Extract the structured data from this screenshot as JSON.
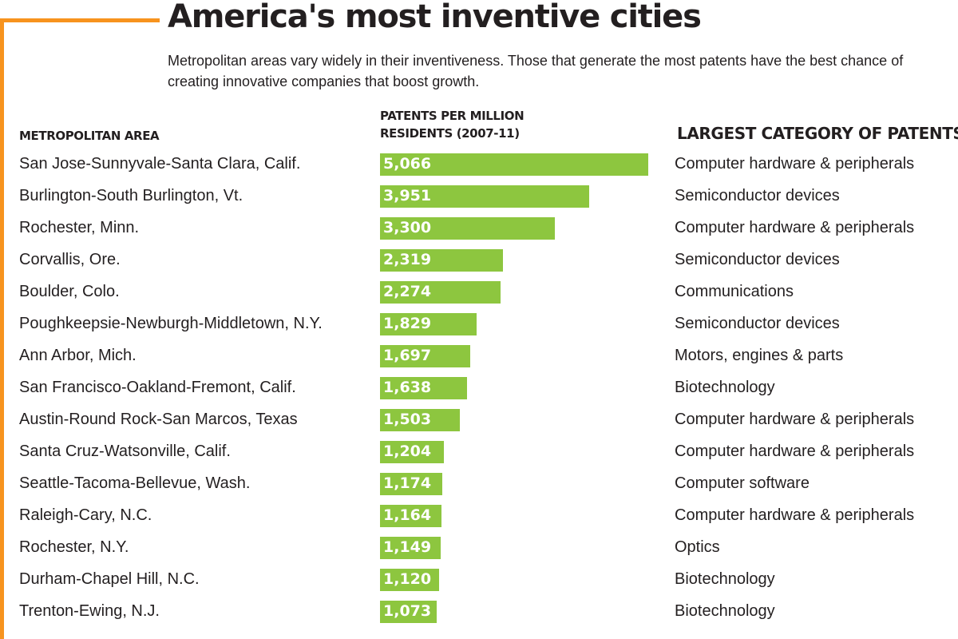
{
  "title": "America's most inventive cities",
  "subtitle": "Metropolitan areas vary widely in their inventiveness. Those that generate the most patents have the best chance of creating innovative companies that boost growth.",
  "headers": {
    "area": "METROPOLITAN AREA",
    "patents_line1": "PATENTS PER MILLION",
    "patents_line2": "RESIDENTS (2007-11)",
    "category": "LARGEST CATEGORY OF PATENTS"
  },
  "colors": {
    "accent": "#f7931e",
    "bar": "#8dc63f",
    "text": "#231f20"
  },
  "chart_data": {
    "type": "bar",
    "orientation": "horizontal",
    "title": "America's most inventive cities",
    "xlabel": "PATENTS PER MILLION RESIDENTS (2007-11)",
    "ylabel": "METROPOLITAN AREA",
    "xlim": [
      0,
      5066
    ],
    "grid": false,
    "categories": [
      "San Jose-Sunnyvale-Santa Clara, Calif.",
      "Burlington-South Burlington, Vt.",
      "Rochester, Minn.",
      "Corvallis, Ore.",
      "Boulder, Colo.",
      "Poughkeepsie-Newburgh-Middletown, N.Y.",
      "Ann Arbor, Mich.",
      "San Francisco-Oakland-Fremont, Calif.",
      "Austin-Round Rock-San Marcos, Texas",
      "Santa Cruz-Watsonville, Calif.",
      "Seattle-Tacoma-Bellevue, Wash.",
      "Raleigh-Cary, N.C.",
      "Rochester, N.Y.",
      "Durham-Chapel Hill, N.C.",
      "Trenton-Ewing, N.J."
    ],
    "values": [
      5066,
      3951,
      3300,
      2319,
      2274,
      1829,
      1697,
      1638,
      1503,
      1204,
      1174,
      1164,
      1149,
      1120,
      1073
    ],
    "value_labels": [
      "5,066",
      "3,951",
      "3,300",
      "2,319",
      "2,274",
      "1,829",
      "1,697",
      "1,638",
      "1,503",
      "1,204",
      "1,174",
      "1,164",
      "1,149",
      "1,120",
      "1,073"
    ],
    "largest_category": [
      "Computer hardware & peripherals",
      "Semiconductor devices",
      "Computer hardware & peripherals",
      "Semiconductor devices",
      "Communications",
      "Semiconductor devices",
      "Motors, engines & parts",
      "Biotechnology",
      "Computer hardware & peripherals",
      "Computer hardware & peripherals",
      "Computer software",
      "Computer hardware & peripherals",
      "Optics",
      "Biotechnology",
      "Biotechnology"
    ]
  }
}
